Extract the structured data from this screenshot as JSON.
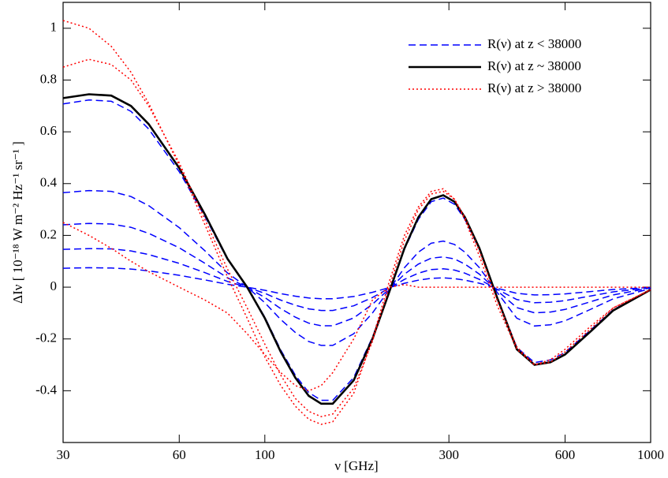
{
  "chart_data": {
    "type": "line",
    "x_label": "ν [GHz]",
    "y_label": "ΔIν [ 10⁻¹⁸ W m⁻² Hz⁻¹ sr⁻¹ ]",
    "log_x": true,
    "legend": "upper right",
    "xlim": [
      30,
      1000
    ],
    "xticks": [
      30,
      60,
      100,
      300,
      600,
      1000
    ],
    "ylim": [
      -0.6,
      1.1
    ],
    "yticks": [
      -0.4,
      -0.2,
      0,
      0.2,
      0.4,
      0.6,
      0.8,
      1
    ],
    "x": [
      30,
      35,
      40,
      45,
      50,
      60,
      70,
      80,
      90,
      100,
      110,
      120,
      130,
      140,
      150,
      170,
      190,
      210,
      230,
      250,
      270,
      290,
      310,
      330,
      360,
      400,
      450,
      500,
      550,
      600,
      700,
      800,
      1000
    ],
    "series": [
      {
        "name": "R(ν) at z < 38000",
        "color": "#0000ff",
        "style": "dashed",
        "values": [
          0.708,
          0.723,
          0.718,
          0.679,
          0.611,
          0.446,
          0.272,
          0.107,
          0,
          -0.116,
          -0.243,
          -0.34,
          -0.407,
          -0.437,
          -0.437,
          -0.349,
          -0.194,
          -0.019,
          0.146,
          0.262,
          0.33,
          0.344,
          0.32,
          0.262,
          0.146,
          -0.039,
          -0.233,
          -0.291,
          -0.281,
          -0.252,
          -0.165,
          -0.087,
          -0.01
        ]
      },
      {
        "color": "#0000ff",
        "style": "dashed",
        "values": [
          0.365,
          0.373,
          0.37,
          0.35,
          0.315,
          0.23,
          0.14,
          0.055,
          0,
          -0.06,
          -0.125,
          -0.175,
          -0.21,
          -0.225,
          -0.225,
          -0.18,
          -0.1,
          -0.01,
          0.075,
          0.135,
          0.17,
          0.178,
          0.165,
          0.135,
          0.075,
          -0.02,
          -0.12,
          -0.15,
          -0.145,
          -0.13,
          -0.085,
          -0.045,
          -0.005
        ]
      },
      {
        "color": "#0000ff",
        "style": "dashed",
        "values": [
          0.241,
          0.246,
          0.244,
          0.231,
          0.208,
          0.152,
          0.092,
          0.036,
          0,
          -0.04,
          -0.083,
          -0.116,
          -0.139,
          -0.149,
          -0.149,
          -0.119,
          -0.066,
          -0.007,
          0.05,
          0.089,
          0.112,
          0.117,
          0.109,
          0.089,
          0.05,
          -0.013,
          -0.079,
          -0.099,
          -0.096,
          -0.086,
          -0.056,
          -0.03,
          -0.003
        ]
      },
      {
        "color": "#0000ff",
        "style": "dashed",
        "values": [
          0.146,
          0.149,
          0.148,
          0.14,
          0.126,
          0.092,
          0.056,
          0.022,
          0,
          -0.024,
          -0.05,
          -0.07,
          -0.084,
          -0.09,
          -0.09,
          -0.072,
          -0.04,
          -0.004,
          0.03,
          0.054,
          0.068,
          0.071,
          0.066,
          0.054,
          0.03,
          -0.008,
          -0.048,
          -0.06,
          -0.058,
          -0.052,
          -0.034,
          -0.018,
          -0.002
        ]
      },
      {
        "color": "#0000ff",
        "style": "dashed",
        "values": [
          0.073,
          0.075,
          0.074,
          0.07,
          0.063,
          0.046,
          0.028,
          0.011,
          0,
          -0.012,
          -0.025,
          -0.035,
          -0.042,
          -0.045,
          -0.045,
          -0.036,
          -0.02,
          -0.002,
          0.015,
          0.027,
          0.034,
          0.036,
          0.033,
          0.027,
          0.015,
          -0.004,
          -0.024,
          -0.03,
          -0.029,
          -0.026,
          -0.017,
          -0.009,
          -0.001
        ]
      },
      {
        "name": "R(ν) at z ~ 38000",
        "color": "#000000",
        "style": "solid",
        "values": [
          0.73,
          0.745,
          0.74,
          0.7,
          0.63,
          0.46,
          0.28,
          0.11,
          0.0,
          -0.12,
          -0.25,
          -0.35,
          -0.42,
          -0.45,
          -0.45,
          -0.36,
          -0.2,
          -0.02,
          0.15,
          0.27,
          0.34,
          0.355,
          0.33,
          0.27,
          0.15,
          -0.04,
          -0.24,
          -0.3,
          -0.29,
          -0.26,
          -0.17,
          -0.09,
          -0.01
        ]
      },
      {
        "name": "R(ν) at z > 38000",
        "color": "#ff0000",
        "style": "dotted",
        "values": [
          1.03,
          1.0,
          0.93,
          0.83,
          0.71,
          0.47,
          0.24,
          0.04,
          -0.12,
          -0.27,
          -0.38,
          -0.46,
          -0.51,
          -0.53,
          -0.52,
          -0.41,
          -0.2,
          0.02,
          0.2,
          0.31,
          0.37,
          0.38,
          0.34,
          0.26,
          0.12,
          -0.07,
          -0.24,
          -0.3,
          -0.28,
          -0.24,
          -0.15,
          -0.08,
          -0.01
        ]
      },
      {
        "color": "#ff0000",
        "style": "dotted",
        "values": [
          0.85,
          0.88,
          0.86,
          0.8,
          0.7,
          0.48,
          0.26,
          0.07,
          -0.08,
          -0.22,
          -0.34,
          -0.43,
          -0.48,
          -0.5,
          -0.49,
          -0.39,
          -0.21,
          0.0,
          0.18,
          0.3,
          0.36,
          0.37,
          0.34,
          0.27,
          0.14,
          -0.05,
          -0.23,
          -0.3,
          -0.29,
          -0.25,
          -0.16,
          -0.08,
          -0.01
        ]
      },
      {
        "color": "#ff0000",
        "style": "dotted",
        "values": [
          0.25,
          0.2,
          0.15,
          0.1,
          0.06,
          0.0,
          -0.05,
          -0.1,
          -0.18,
          -0.26,
          -0.33,
          -0.38,
          -0.4,
          -0.38,
          -0.33,
          -0.2,
          -0.05,
          0.0,
          0.01,
          0,
          0,
          0,
          0,
          0,
          0,
          0,
          0,
          0,
          0,
          0,
          0,
          0,
          0
        ]
      }
    ]
  }
}
